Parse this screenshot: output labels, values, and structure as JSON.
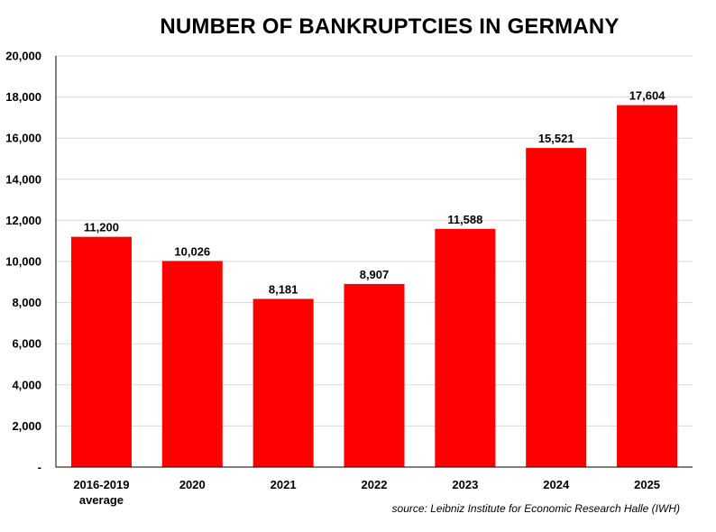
{
  "chart_data": {
    "type": "bar",
    "title": "NUMBER OF BANKRUPTCIES IN GERMANY",
    "categories": [
      [
        "2016-2019",
        "average"
      ],
      [
        "2020"
      ],
      [
        "2021"
      ],
      [
        "2022"
      ],
      [
        "2023"
      ],
      [
        "2024"
      ],
      [
        "2025"
      ]
    ],
    "values": [
      11200,
      10026,
      8181,
      8907,
      11588,
      15521,
      17604
    ],
    "data_labels": [
      "11,200",
      "10,026",
      "8,181",
      "8,907",
      "11,588",
      "15,521",
      "17,604"
    ],
    "ylim": [
      0,
      20000
    ],
    "yticks": [
      0,
      2000,
      4000,
      6000,
      8000,
      10000,
      12000,
      14000,
      16000,
      18000,
      20000
    ],
    "ytick_labels": [
      "-",
      "2,000",
      "4,000",
      "6,000",
      "8,000",
      "10,000",
      "12,000",
      "14,000",
      "16,000",
      "18,000",
      "20,000"
    ],
    "bar_color": "#ff0000",
    "grid": true,
    "legend": "none",
    "source": "source: Leibniz Institute for Economic Research Halle (IWH)"
  }
}
